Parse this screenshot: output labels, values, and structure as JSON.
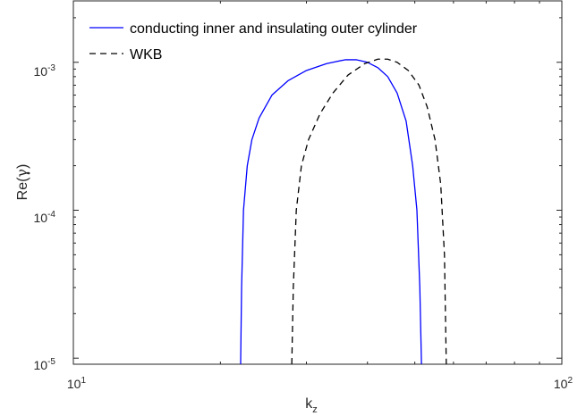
{
  "chart_data": {
    "type": "line",
    "xscale": "log",
    "yscale": "log",
    "xlim": [
      10,
      100
    ],
    "ylim": [
      9.1e-06,
      0.0026
    ],
    "grid": false,
    "legend_position": "top-left",
    "xlabel": {
      "base": "k",
      "sub": "z"
    },
    "ylabel": {
      "text": "Re(",
      "symbol": "γ",
      "close": ")"
    },
    "x_ticks": [
      {
        "value": 10,
        "base": "10",
        "exp": "1"
      },
      {
        "value": 100,
        "base": "10",
        "exp": "2"
      }
    ],
    "y_ticks": [
      {
        "value": 1e-05,
        "base": "10",
        "exp": "-5"
      },
      {
        "value": 0.0001,
        "base": "10",
        "exp": "-4"
      },
      {
        "value": 0.001,
        "base": "10",
        "exp": "-3"
      }
    ],
    "series": [
      {
        "name": "conducting inner and insulating outer cylinder",
        "color": "#0000ff",
        "dash": "solid",
        "x": [
          22.0,
          22.1,
          22.3,
          22.7,
          23.2,
          24.0,
          25.5,
          27.5,
          30.0,
          33.0,
          36.0,
          38.0,
          40.0,
          42.0,
          44.0,
          46.0,
          48.0,
          49.5,
          50.5,
          51.2,
          51.6
        ],
        "y": [
          9.1e-06,
          3e-05,
          0.0001,
          0.0002,
          0.0003,
          0.00042,
          0.0006,
          0.00075,
          0.00088,
          0.00098,
          0.00104,
          0.00104,
          0.001,
          0.00092,
          0.0008,
          0.00062,
          0.0004,
          0.0002,
          0.0001,
          3e-05,
          9.1e-06
        ]
      },
      {
        "name": "WKB",
        "color": "#000000",
        "dash": "dashed",
        "x": [
          28.0,
          28.2,
          28.6,
          29.3,
          30.3,
          32.0,
          34.0,
          36.5,
          39.5,
          42.0,
          44.0,
          46.0,
          48.5,
          51.0,
          53.0,
          55.0,
          56.5,
          57.5,
          58.0
        ],
        "y": [
          9.1e-06,
          3e-05,
          0.0001,
          0.0002,
          0.0003,
          0.00045,
          0.00062,
          0.00082,
          0.00098,
          0.00105,
          0.00105,
          0.001,
          0.00088,
          0.0007,
          0.0005,
          0.0003,
          0.00015,
          5e-05,
          9.1e-06
        ]
      }
    ]
  }
}
